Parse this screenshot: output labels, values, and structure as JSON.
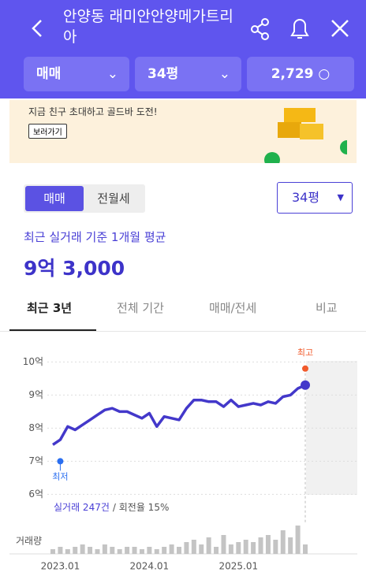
{
  "header": {
    "title": "안양동 래미안안양메가트리아",
    "filters": [
      "매매",
      "34평",
      "2,729"
    ]
  },
  "banner": {
    "text": "지금 친구 초대하고 골드바 도전!",
    "button": "보러가기"
  },
  "trade_toggle": [
    "매매",
    "전월세"
  ],
  "size_select": "34평",
  "summary": {
    "label": "최근 실거래 기준 1개월 평균",
    "price": "9억 3,000"
  },
  "tabs": [
    "최근 3년",
    "전체 기간",
    "매매/전세",
    "비교"
  ],
  "chart_data": {
    "type": "line",
    "x": [
      "2022.12",
      "2023.01",
      "2023.02",
      "2023.03",
      "2023.04",
      "2023.05",
      "2023.06",
      "2023.07",
      "2023.08",
      "2023.09",
      "2023.10",
      "2023.11",
      "2023.12",
      "2024.01",
      "2024.02",
      "2024.03",
      "2024.04",
      "2024.05",
      "2024.06",
      "2024.07",
      "2024.08",
      "2024.09",
      "2024.10",
      "2024.11",
      "2024.12",
      "2025.01",
      "2025.02",
      "2025.03",
      "2025.04",
      "2025.05",
      "2025.06",
      "2025.07",
      "2025.08",
      "2025.09",
      "2025.10"
    ],
    "series": [
      {
        "color": "#4338ca",
        "values": [
          7.5,
          7.65,
          8.05,
          7.95,
          8.1,
          8.25,
          8.4,
          8.55,
          8.6,
          8.5,
          8.5,
          8.4,
          8.3,
          8.45,
          8.05,
          8.35,
          8.3,
          8.25,
          8.6,
          8.85,
          8.85,
          8.8,
          8.8,
          8.65,
          8.85,
          8.65,
          8.7,
          8.75,
          8.7,
          8.8,
          8.75,
          8.95,
          9.0,
          9.2,
          9.3
        ]
      }
    ],
    "volume": {
      "label": "거래량",
      "color": "#c4c4c4",
      "values": [
        2,
        3,
        2,
        3,
        4,
        3,
        2,
        4,
        3,
        2,
        3,
        3,
        2,
        3,
        2,
        3,
        4,
        3,
        5,
        6,
        4,
        7,
        3,
        8,
        4,
        5,
        6,
        5,
        7,
        8,
        6,
        10,
        7,
        12,
        4
      ]
    },
    "annotations": [
      {
        "text": "최고",
        "x": "2025.10",
        "value": 9.8,
        "color": "#f15a2b"
      },
      {
        "text": "최저",
        "x": "2023.01",
        "value": 7.0,
        "color": "#2a6ef0"
      }
    ],
    "stats": [
      "실거래 247건",
      "/ 회전율 15%"
    ],
    "ylim": [
      5.7,
      10.7
    ],
    "yticks": [
      {
        "value": 6,
        "label": "6억"
      },
      {
        "value": 7,
        "label": "7억"
      },
      {
        "value": 8,
        "label": "8억"
      },
      {
        "value": 9,
        "label": "9억"
      },
      {
        "value": 10,
        "label": "10억"
      }
    ],
    "xticks": [
      "2023.01",
      "2024.01",
      "2025.01"
    ],
    "grid": true
  }
}
